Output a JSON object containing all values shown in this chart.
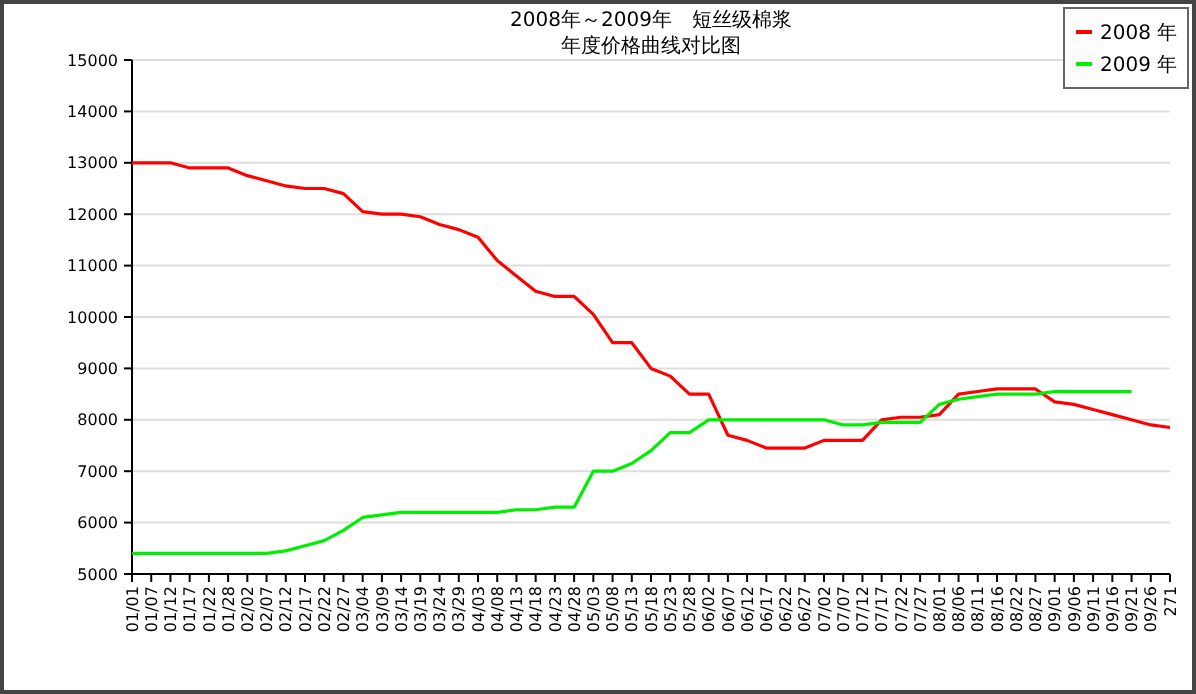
{
  "chart_data": {
    "type": "line",
    "title": "2008年～2009年　短丝级棉浆",
    "subtitle": "年度价格曲线对比图",
    "categories": [
      "01/01",
      "01/07",
      "01/12",
      "01/17",
      "01/22",
      "01/28",
      "02/02",
      "02/07",
      "02/12",
      "02/17",
      "02/22",
      "02/27",
      "03/04",
      "03/09",
      "03/14",
      "03/19",
      "03/24",
      "03/29",
      "04/03",
      "04/08",
      "04/13",
      "04/18",
      "04/23",
      "04/28",
      "05/03",
      "05/08",
      "05/13",
      "05/18",
      "05/23",
      "05/28",
      "06/02",
      "06/07",
      "06/12",
      "06/17",
      "06/22",
      "06/27",
      "07/02",
      "07/07",
      "07/12",
      "07/17",
      "07/22",
      "07/27",
      "08/01",
      "08/06",
      "08/11",
      "08/16",
      "08/22",
      "08/27",
      "09/01",
      "09/06",
      "09/11",
      "09/16",
      "09/21",
      "09/26",
      "271"
    ],
    "series": [
      {
        "name": "2008 年",
        "color": "#ff0000",
        "values": [
          13000,
          13000,
          13000,
          12900,
          12900,
          12900,
          12750,
          12650,
          12550,
          12500,
          12500,
          12400,
          12050,
          12000,
          12000,
          11950,
          11800,
          11700,
          11550,
          11100,
          10800,
          10500,
          10400,
          10400,
          10050,
          9500,
          9500,
          9000,
          8850,
          8500,
          8500,
          7700,
          7600,
          7450,
          7450,
          7450,
          7600,
          7600,
          7600,
          8000,
          8050,
          8050,
          8100,
          8500,
          8550,
          8600,
          8600,
          8600,
          8350,
          8300,
          8200,
          8100,
          8000,
          7900,
          7850
        ]
      },
      {
        "name": "2009 年",
        "color": "#00ee00",
        "values": [
          5400,
          5400,
          5400,
          5400,
          5400,
          5400,
          5400,
          5400,
          5450,
          5550,
          5650,
          5850,
          6100,
          6150,
          6200,
          6200,
          6200,
          6200,
          6200,
          6200,
          6250,
          6250,
          6300,
          6300,
          7000,
          7000,
          7150,
          7400,
          7750,
          7750,
          8000,
          8000,
          8000,
          8000,
          8000,
          8000,
          8000,
          7900,
          7900,
          7950,
          7950,
          7950,
          8300,
          8400,
          8450,
          8500,
          8500,
          8500,
          8550,
          8550,
          8550,
          8550,
          8550,
          null,
          null
        ]
      }
    ],
    "ylim": [
      5000,
      15000
    ],
    "yticks": [
      5000,
      6000,
      7000,
      8000,
      9000,
      10000,
      11000,
      12000,
      13000,
      14000,
      15000
    ],
    "grid": "y",
    "legend": "top right",
    "marker": "none",
    "line_style": "solid"
  }
}
